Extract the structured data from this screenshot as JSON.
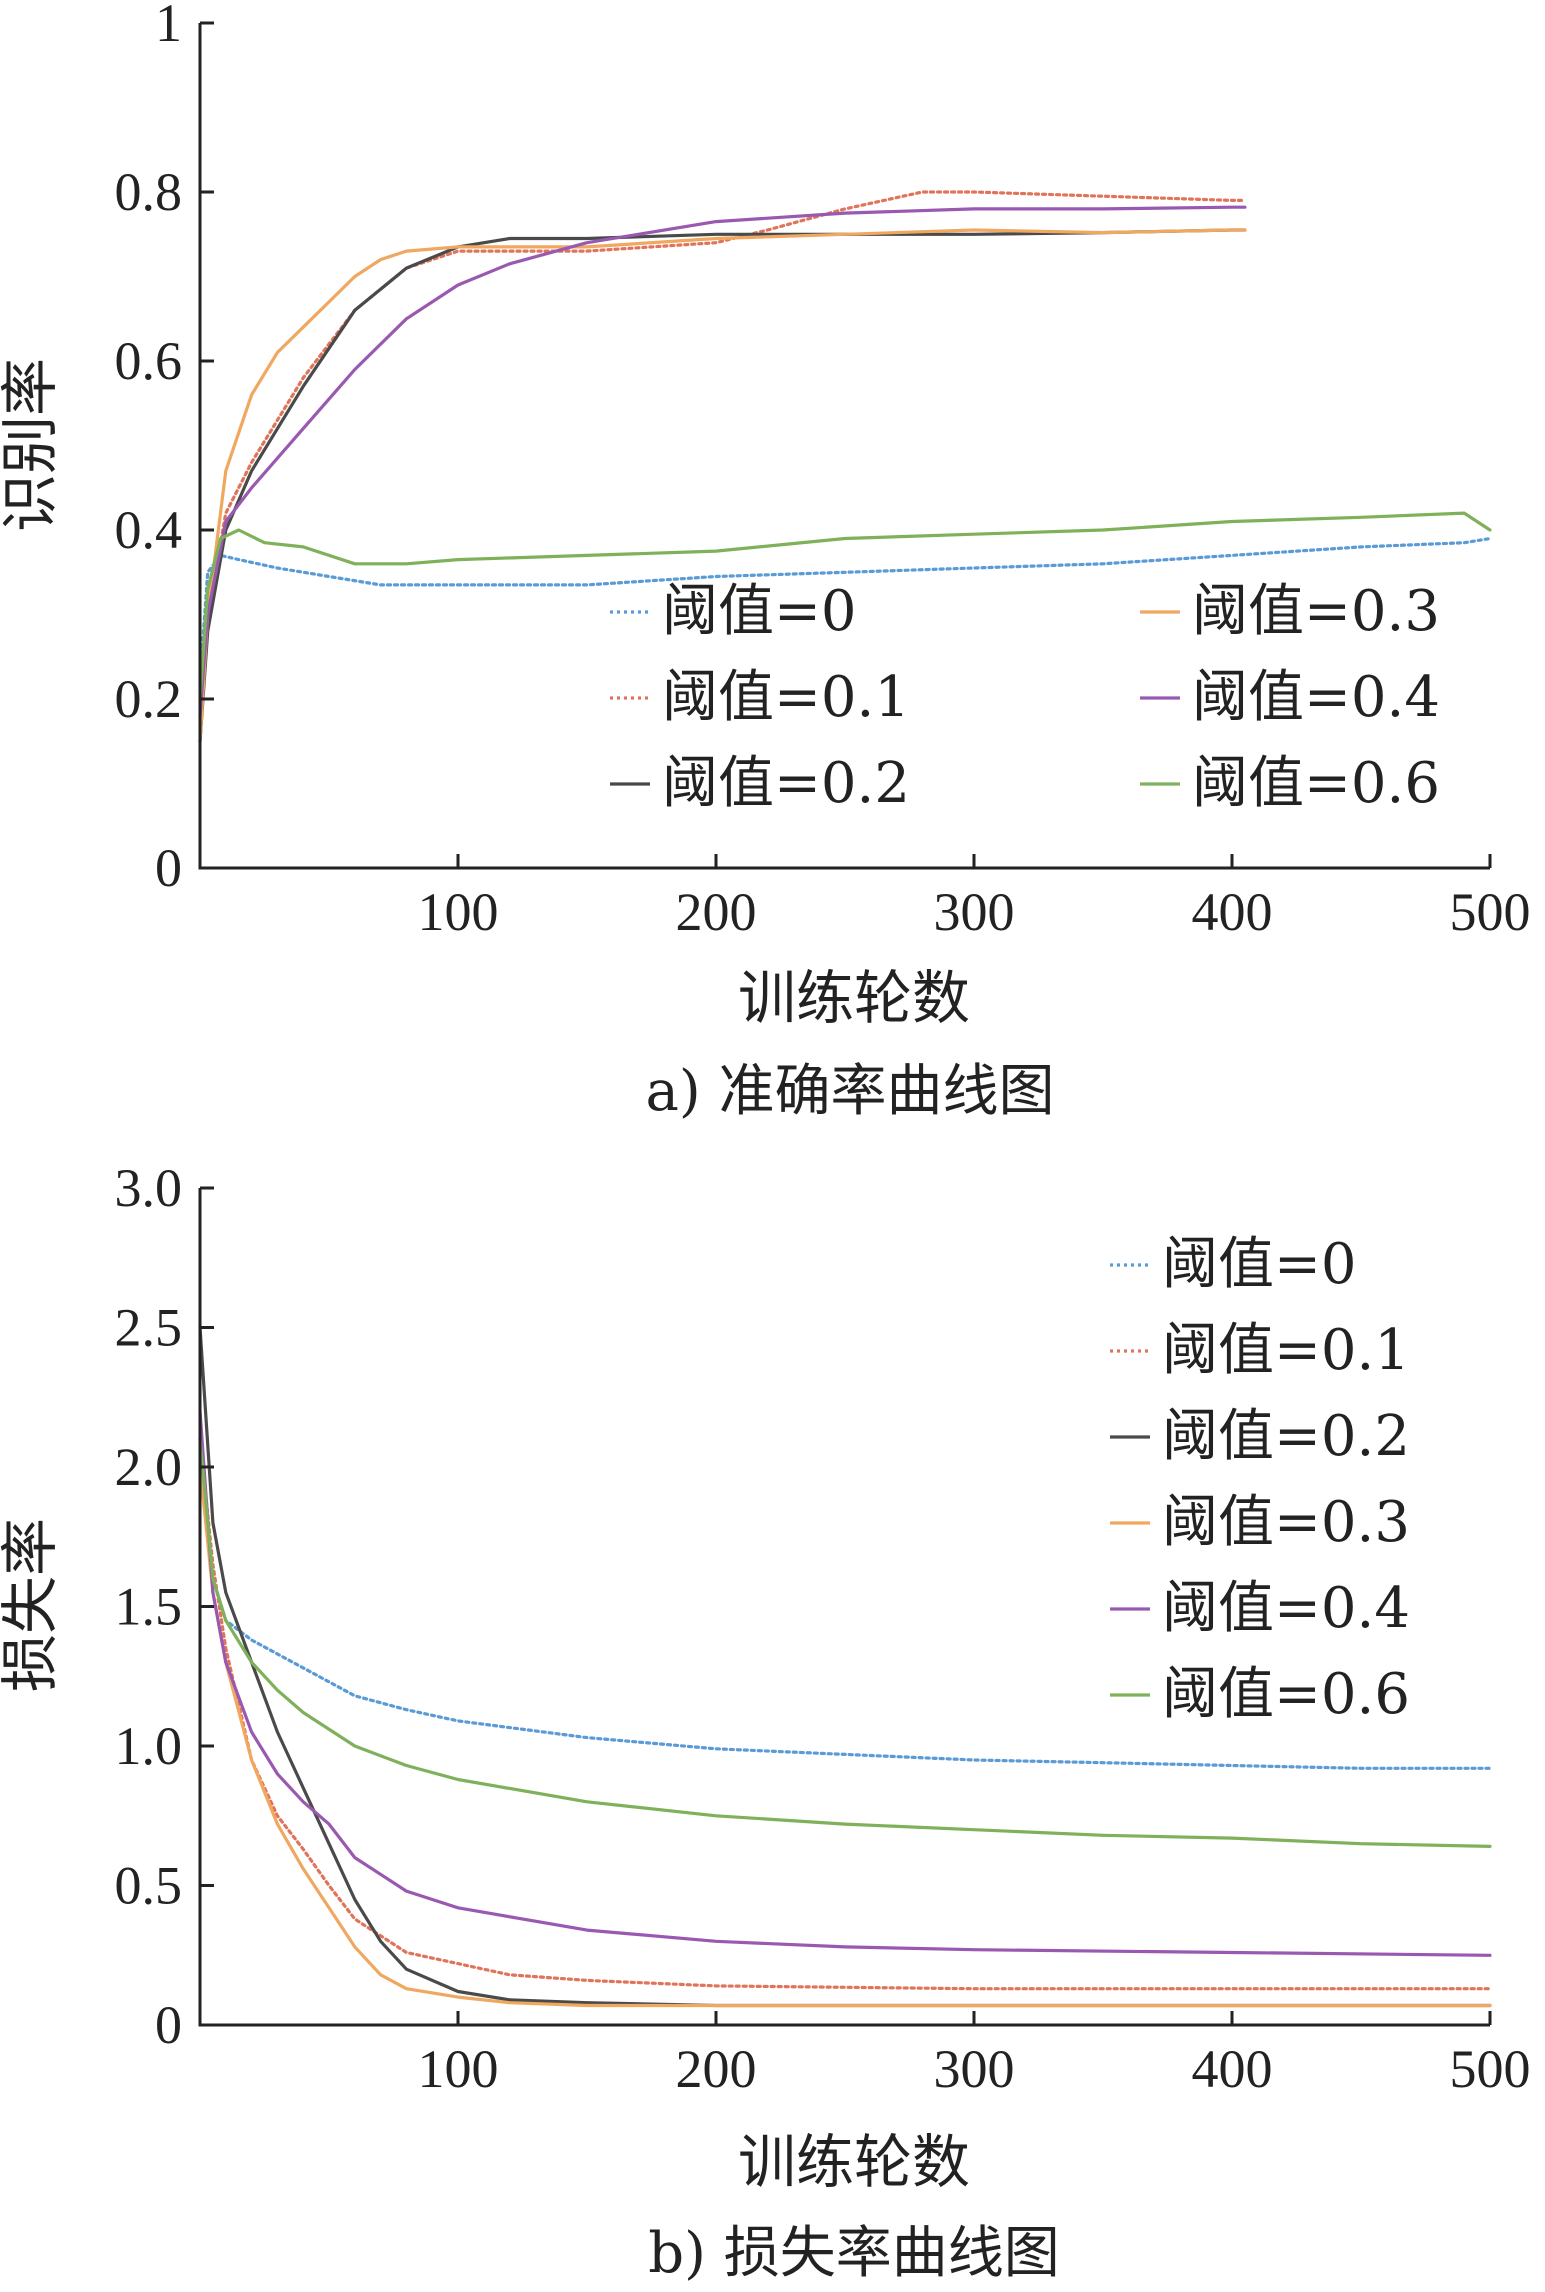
{
  "chart_data": [
    {
      "type": "line",
      "caption": "a) 准确率曲线图",
      "xlabel": "训练轮数",
      "ylabel": "识别率",
      "xlim": [
        0,
        500
      ],
      "ylim": [
        0,
        1
      ],
      "xticks": [
        "100",
        "200",
        "300",
        "400",
        "500"
      ],
      "yticks": [
        "0",
        "0.2",
        "0.4",
        "0.6",
        "0.8",
        "1"
      ],
      "legend_position": "lower-right",
      "series": [
        {
          "name": "阈值=0",
          "color": "#5b9bd5",
          "dash": "dotted",
          "x": [
            0,
            3,
            8,
            15,
            30,
            50,
            70,
            100,
            150,
            200,
            250,
            300,
            350,
            400,
            450,
            490,
            500
          ],
          "y": [
            0.22,
            0.35,
            0.37,
            0.365,
            0.355,
            0.345,
            0.335,
            0.335,
            0.335,
            0.345,
            0.35,
            0.355,
            0.36,
            0.37,
            0.38,
            0.385,
            0.39
          ]
        },
        {
          "name": "阈值=0.1",
          "color": "#e0745a",
          "dash": "dotted",
          "x": [
            0,
            3,
            10,
            20,
            40,
            60,
            80,
            100,
            150,
            200,
            220,
            250,
            280,
            300,
            350,
            400,
            405
          ],
          "y": [
            0.15,
            0.3,
            0.42,
            0.48,
            0.58,
            0.66,
            0.71,
            0.73,
            0.73,
            0.74,
            0.755,
            0.78,
            0.8,
            0.8,
            0.795,
            0.79,
            0.79
          ]
        },
        {
          "name": "阈值=0.2",
          "color": "#4a4a4a",
          "dash": "solid",
          "x": [
            0,
            3,
            10,
            20,
            40,
            60,
            80,
            100,
            120,
            150,
            200,
            250,
            300,
            350,
            400,
            405
          ],
          "y": [
            0.15,
            0.28,
            0.4,
            0.47,
            0.57,
            0.66,
            0.71,
            0.735,
            0.745,
            0.745,
            0.75,
            0.75,
            0.75,
            0.752,
            0.755,
            0.755
          ]
        },
        {
          "name": "阈值=0.3",
          "color": "#f0a860",
          "dash": "solid",
          "x": [
            0,
            3,
            10,
            20,
            30,
            40,
            50,
            60,
            70,
            80,
            100,
            150,
            200,
            250,
            300,
            350,
            400,
            405
          ],
          "y": [
            0.15,
            0.3,
            0.47,
            0.56,
            0.61,
            0.64,
            0.67,
            0.7,
            0.72,
            0.73,
            0.735,
            0.735,
            0.745,
            0.75,
            0.755,
            0.752,
            0.755,
            0.755
          ]
        },
        {
          "name": "阈值=0.4",
          "color": "#9a59b0",
          "dash": "solid",
          "x": [
            0,
            3,
            10,
            20,
            40,
            60,
            80,
            100,
            120,
            150,
            200,
            250,
            300,
            350,
            400,
            405
          ],
          "y": [
            0.18,
            0.3,
            0.41,
            0.45,
            0.52,
            0.59,
            0.65,
            0.69,
            0.715,
            0.74,
            0.765,
            0.775,
            0.78,
            0.78,
            0.782,
            0.782
          ]
        },
        {
          "name": "阈值=0.6",
          "color": "#7fb05a",
          "dash": "solid",
          "x": [
            0,
            3,
            8,
            15,
            25,
            40,
            60,
            80,
            100,
            150,
            200,
            250,
            300,
            350,
            400,
            450,
            490,
            500
          ],
          "y": [
            0.2,
            0.33,
            0.39,
            0.4,
            0.385,
            0.38,
            0.36,
            0.36,
            0.365,
            0.37,
            0.375,
            0.39,
            0.395,
            0.4,
            0.41,
            0.415,
            0.42,
            0.4
          ]
        }
      ]
    },
    {
      "type": "line",
      "caption": "b) 损失率曲线图",
      "xlabel": "训练轮数",
      "ylabel": "损失率",
      "xlim": [
        0,
        500
      ],
      "ylim": [
        0,
        3
      ],
      "xticks": [
        "100",
        "200",
        "300",
        "400",
        "500"
      ],
      "yticks": [
        "0",
        "0.5",
        "1.0",
        "1.5",
        "2.0",
        "2.5",
        "3.0"
      ],
      "legend_position": "top-right",
      "series": [
        {
          "name": "阈值=0",
          "color": "#5b9bd5",
          "dash": "dotted",
          "x": [
            0,
            5,
            10,
            20,
            40,
            60,
            80,
            100,
            150,
            200,
            250,
            300,
            350,
            400,
            450,
            500
          ],
          "y": [
            2.0,
            1.6,
            1.45,
            1.38,
            1.28,
            1.18,
            1.13,
            1.09,
            1.03,
            0.99,
            0.97,
            0.95,
            0.94,
            0.93,
            0.92,
            0.92
          ]
        },
        {
          "name": "阈值=0.1",
          "color": "#e0745a",
          "dash": "dotted",
          "x": [
            0,
            5,
            10,
            20,
            30,
            40,
            50,
            60,
            80,
            100,
            120,
            150,
            200,
            300,
            400,
            500
          ],
          "y": [
            2.1,
            1.65,
            1.35,
            0.95,
            0.75,
            0.63,
            0.5,
            0.38,
            0.26,
            0.22,
            0.18,
            0.16,
            0.14,
            0.13,
            0.13,
            0.13
          ]
        },
        {
          "name": "阈值=0.2",
          "color": "#4a4a4a",
          "dash": "solid",
          "x": [
            0,
            5,
            10,
            20,
            30,
            40,
            50,
            60,
            70,
            80,
            100,
            120,
            150,
            200,
            300,
            400,
            500
          ],
          "y": [
            2.5,
            1.8,
            1.55,
            1.3,
            1.05,
            0.85,
            0.65,
            0.45,
            0.3,
            0.2,
            0.12,
            0.09,
            0.08,
            0.07,
            0.07,
            0.07,
            0.07
          ]
        },
        {
          "name": "阈值=0.3",
          "color": "#f0a860",
          "dash": "solid",
          "x": [
            0,
            5,
            10,
            20,
            30,
            40,
            50,
            60,
            70,
            80,
            100,
            120,
            150,
            200,
            300,
            400,
            500
          ],
          "y": [
            2.0,
            1.55,
            1.3,
            0.95,
            0.72,
            0.56,
            0.42,
            0.28,
            0.18,
            0.13,
            0.1,
            0.08,
            0.07,
            0.07,
            0.07,
            0.07,
            0.07
          ]
        },
        {
          "name": "阈值=0.4",
          "color": "#9a59b0",
          "dash": "solid",
          "x": [
            0,
            5,
            10,
            20,
            30,
            40,
            50,
            60,
            80,
            100,
            150,
            200,
            250,
            300,
            400,
            500
          ],
          "y": [
            2.2,
            1.55,
            1.3,
            1.05,
            0.9,
            0.8,
            0.72,
            0.6,
            0.48,
            0.42,
            0.34,
            0.3,
            0.28,
            0.27,
            0.26,
            0.25
          ]
        },
        {
          "name": "阈值=0.6",
          "color": "#7fb05a",
          "dash": "solid",
          "x": [
            0,
            5,
            10,
            20,
            30,
            40,
            60,
            80,
            100,
            150,
            200,
            250,
            300,
            350,
            400,
            450,
            500
          ],
          "y": [
            2.1,
            1.6,
            1.45,
            1.3,
            1.2,
            1.12,
            1.0,
            0.93,
            0.88,
            0.8,
            0.75,
            0.72,
            0.7,
            0.68,
            0.67,
            0.65,
            0.64
          ]
        }
      ]
    }
  ]
}
